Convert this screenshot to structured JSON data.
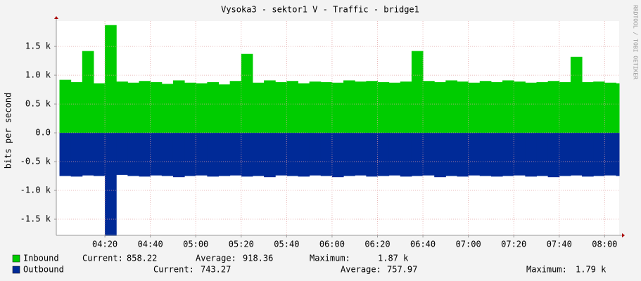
{
  "chart_data": {
    "type": "area",
    "title": "Vysoka3 - sektor1 V - Traffic - bridge1",
    "y_label": "bits per second",
    "watermark": "RRDTOOL / TOBI OETIKER",
    "x": [
      240,
      245,
      250,
      255,
      260,
      265,
      270,
      275,
      280,
      285,
      290,
      295,
      300,
      305,
      310,
      315,
      320,
      325,
      330,
      335,
      340,
      345,
      350,
      355,
      360,
      365,
      370,
      375,
      380,
      385,
      390,
      395,
      400,
      405,
      410,
      415,
      420,
      425,
      430,
      435,
      440,
      445,
      450,
      455,
      460,
      465,
      470,
      475,
      480,
      485
    ],
    "xlim": [
      238.6,
      486.4
    ],
    "xticks": [
      {
        "value": 260,
        "label": "04:20"
      },
      {
        "value": 280,
        "label": "04:40"
      },
      {
        "value": 300,
        "label": "05:00"
      },
      {
        "value": 320,
        "label": "05:20"
      },
      {
        "value": 340,
        "label": "05:40"
      },
      {
        "value": 360,
        "label": "06:00"
      },
      {
        "value": 380,
        "label": "06:20"
      },
      {
        "value": 400,
        "label": "06:40"
      },
      {
        "value": 420,
        "label": "07:00"
      },
      {
        "value": 440,
        "label": "07:20"
      },
      {
        "value": 460,
        "label": "07:40"
      },
      {
        "value": 480,
        "label": "08:00"
      }
    ],
    "ylim": [
      -1780,
      1940
    ],
    "yticks": [
      {
        "value": -1500,
        "label": "-1.5 k"
      },
      {
        "value": -1000,
        "label": "-1.0 k"
      },
      {
        "value": -500,
        "label": "-0.5 k"
      },
      {
        "value": 0,
        "label": "0.0"
      },
      {
        "value": 500,
        "label": "0.5 k"
      },
      {
        "value": 1000,
        "label": "1.0 k"
      },
      {
        "value": 1500,
        "label": "1.5 k"
      }
    ],
    "grid": true,
    "series": [
      {
        "name": "Inbound",
        "color": "#00cc00",
        "values": [
          920,
          880,
          1420,
          860,
          1870,
          890,
          870,
          900,
          880,
          850,
          910,
          870,
          860,
          880,
          840,
          900,
          1370,
          870,
          910,
          880,
          900,
          860,
          890,
          880,
          870,
          910,
          890,
          900,
          880,
          870,
          890,
          1420,
          900,
          880,
          910,
          890,
          870,
          900,
          880,
          910,
          890,
          870,
          880,
          900,
          880,
          1320,
          880,
          890,
          870,
          860
        ],
        "stats": [
          [
            "Current:",
            "858.22"
          ],
          [
            "Average:",
            "918.36"
          ],
          [
            "Maximum:",
            "1.87 k"
          ]
        ]
      },
      {
        "name": "Outbound",
        "color": "#002a97",
        "values": [
          -750,
          -760,
          -740,
          -750,
          -1790,
          -730,
          -750,
          -760,
          -740,
          -750,
          -770,
          -750,
          -740,
          -760,
          -750,
          -740,
          -760,
          -750,
          -770,
          -740,
          -750,
          -760,
          -740,
          -750,
          -770,
          -750,
          -740,
          -760,
          -750,
          -740,
          -760,
          -750,
          -740,
          -770,
          -750,
          -760,
          -740,
          -750,
          -760,
          -750,
          -740,
          -760,
          -750,
          -770,
          -750,
          -740,
          -760,
          -750,
          -740,
          -750
        ],
        "stats": [
          [
            "Current:",
            "743.27"
          ],
          [
            "Average:",
            "757.97"
          ],
          [
            "Maximum:",
            "1.79 k"
          ]
        ]
      }
    ]
  }
}
